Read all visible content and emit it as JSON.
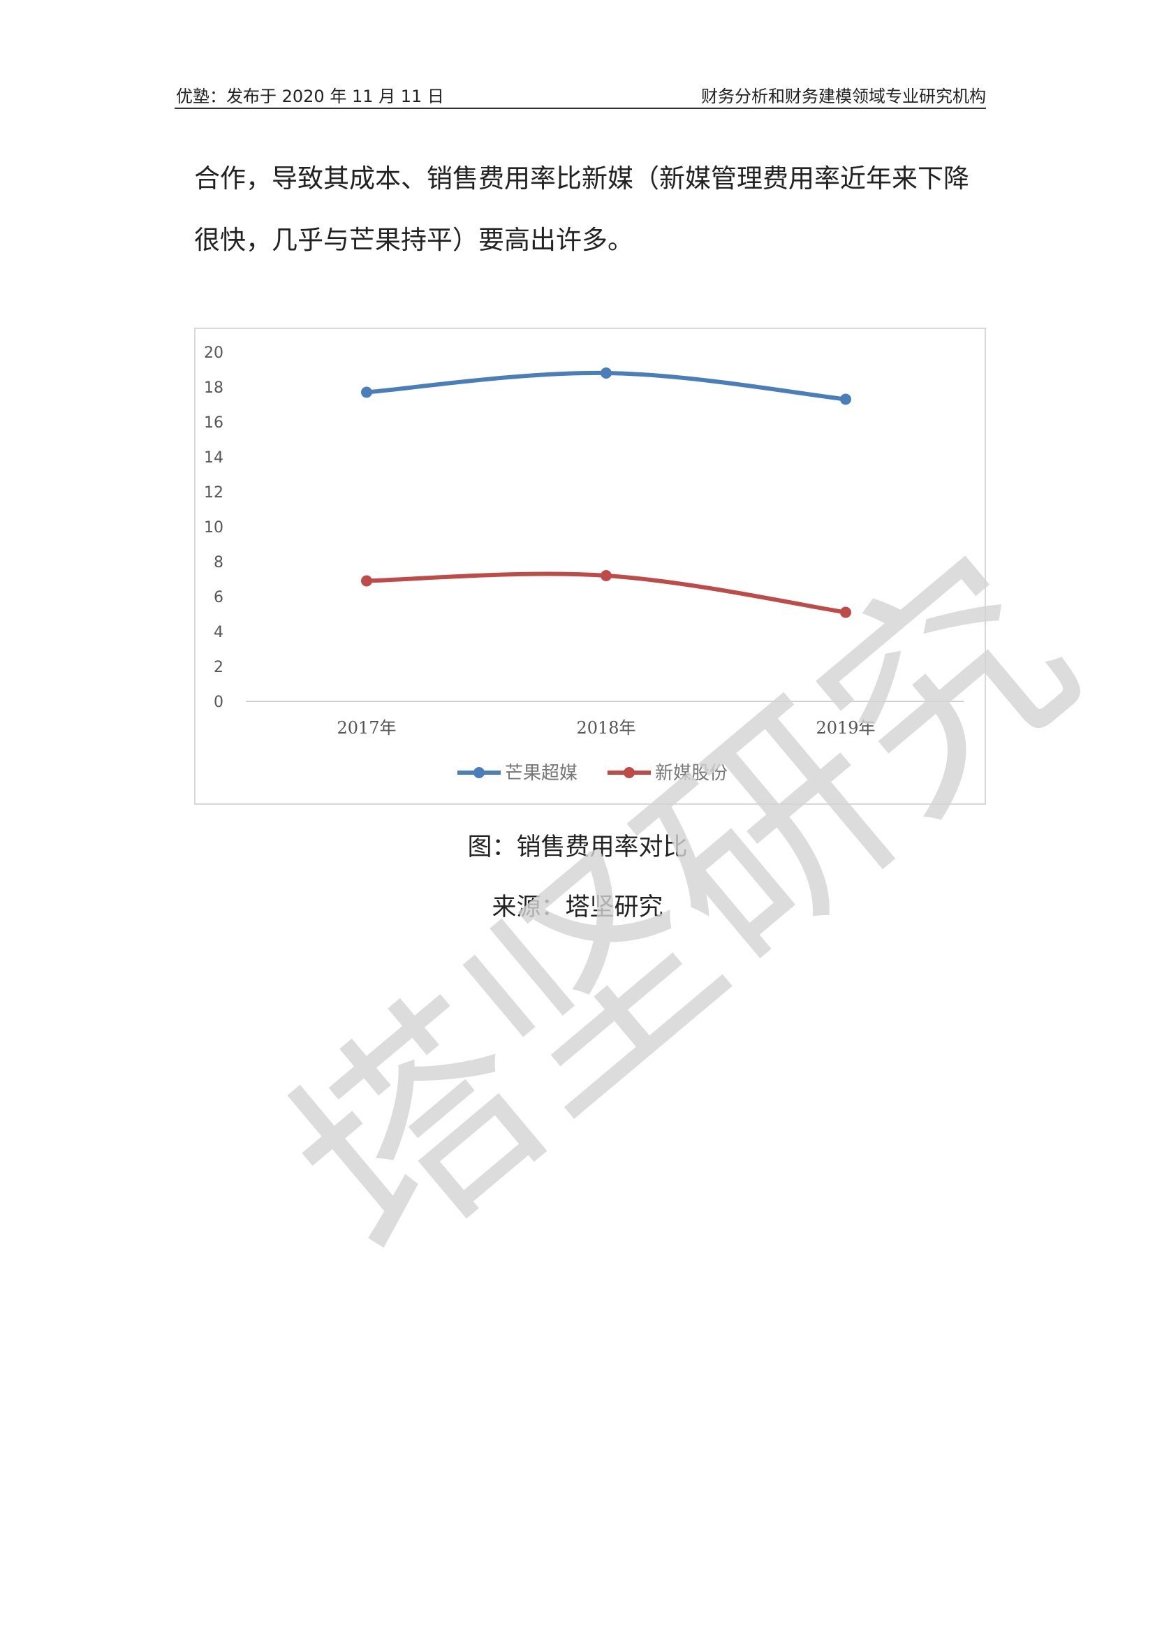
{
  "header": {
    "left": "优塾：发布于 2020 年 11 月 11 日",
    "right": "财务分析和财务建模领域专业研究机构"
  },
  "paragraph": "合作，导致其成本、销售费用率比新媒（新媒管理费用率近年来下降很快，几乎与芒果持平）要高出许多。",
  "figure": {
    "caption": "图：销售费用率对比",
    "source": "来源：塔坚研究"
  },
  "watermark": "塔坚研究",
  "chart_data": {
    "type": "line",
    "categories": [
      "2017年",
      "2018年",
      "2019年"
    ],
    "series": [
      {
        "name": "芒果超媒",
        "values": [
          17.7,
          18.8,
          17.3
        ],
        "color": "#4a7ebb"
      },
      {
        "name": "新媒股份",
        "values": [
          6.9,
          7.2,
          5.1
        ],
        "color": "#be4b48"
      }
    ],
    "ylim": [
      0,
      20
    ],
    "yticks": [
      0,
      2,
      4,
      6,
      8,
      10,
      12,
      14,
      16,
      18,
      20
    ],
    "legend": "bottom",
    "grid": false
  }
}
